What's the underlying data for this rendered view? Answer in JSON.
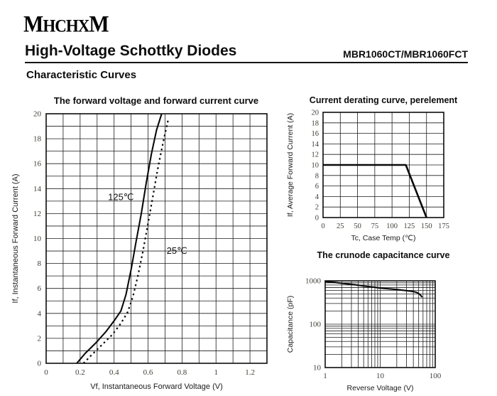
{
  "header": {
    "logo": "MHCHXM",
    "title": "High-Voltage Schottky Diodes",
    "part_number": "MBR1060CT/MBR1060FCT",
    "section_title": "Characteristic Curves"
  },
  "colors": {
    "ink": "#0d0d0d",
    "grid": "#1c1c1c",
    "curve": "#0a0a0a",
    "tick_text": "#3f3e36",
    "background": "#ffffff"
  },
  "chart_data": [
    {
      "id": "forward",
      "type": "line",
      "title": "The forward voltage and forward current curve",
      "xlabel": "Vf, Instantaneous Forward Voltage (V)",
      "ylabel": "If, Instantaneous Forward Current (A)",
      "xscale": "linear",
      "yscale": "linear",
      "xlim": [
        0,
        1.3
      ],
      "ylim": [
        0,
        20
      ],
      "xgrid_step": 0.1,
      "ygrid_step": 1,
      "xticks": {
        "values": [
          0,
          0.2,
          0.4,
          0.6,
          0.8,
          1.0,
          1.2
        ],
        "labels": [
          "0",
          "0.2",
          "0.4",
          "0.6",
          "0.8",
          "1",
          "1.2"
        ]
      },
      "yticks": {
        "values": [
          0,
          2,
          4,
          6,
          8,
          10,
          12,
          14,
          16,
          18,
          20
        ],
        "labels": [
          "0",
          "2",
          "4",
          "6",
          "8",
          "10",
          "12",
          "14",
          "16",
          "18",
          "20"
        ]
      },
      "grid": true,
      "legend_position": "inline-labels",
      "series": [
        {
          "name": "125℃",
          "style": "solid",
          "width": 2.1,
          "points": [
            [
              0.18,
              0
            ],
            [
              0.23,
              0.8
            ],
            [
              0.29,
              1.6
            ],
            [
              0.35,
              2.5
            ],
            [
              0.4,
              3.4
            ],
            [
              0.44,
              4.2
            ],
            [
              0.47,
              5.5
            ],
            [
              0.5,
              7.5
            ],
            [
              0.53,
              9.8
            ],
            [
              0.56,
              12.0
            ],
            [
              0.59,
              14.5
            ],
            [
              0.62,
              16.8
            ],
            [
              0.65,
              18.7
            ],
            [
              0.68,
              20.0
            ]
          ],
          "label_at": [
            0.44,
            13.3
          ],
          "label_font": 13
        },
        {
          "name": "25℃",
          "style": "dotted",
          "width": 2.2,
          "points": [
            [
              0.22,
              0
            ],
            [
              0.27,
              0.7
            ],
            [
              0.33,
              1.5
            ],
            [
              0.39,
              2.3
            ],
            [
              0.44,
              3.2
            ],
            [
              0.48,
              4.1
            ],
            [
              0.51,
              5.3
            ],
            [
              0.54,
              7.0
            ],
            [
              0.57,
              9.0
            ],
            [
              0.6,
              11.2
            ],
            [
              0.63,
              13.5
            ],
            [
              0.66,
              15.8
            ],
            [
              0.69,
              17.8
            ],
            [
              0.72,
              19.6
            ]
          ],
          "label_at": [
            0.77,
            9.0
          ],
          "label_font": 13
        }
      ]
    },
    {
      "id": "derating",
      "type": "line",
      "title": "Current derating curve, perelement",
      "xlabel": "Tc, Case Temp (℃)",
      "ylabel": "If, Average Forward Current (A)",
      "xscale": "linear",
      "yscale": "linear",
      "xlim": [
        0,
        175
      ],
      "ylim": [
        0,
        20
      ],
      "xgrid_step": 25,
      "ygrid_step": 2,
      "xticks": {
        "values": [
          0,
          25,
          50,
          75,
          100,
          125,
          150,
          175
        ],
        "labels": [
          "0",
          "25",
          "50",
          "75",
          "100",
          "125",
          "150",
          "175"
        ]
      },
      "yticks": {
        "values": [
          0,
          2,
          4,
          6,
          8,
          10,
          12,
          14,
          16,
          18,
          20
        ],
        "labels": [
          "0",
          "2",
          "4",
          "6",
          "8",
          "10",
          "12",
          "14",
          "16",
          "18",
          "20"
        ]
      },
      "grid": true,
      "series": [
        {
          "name": "derating",
          "style": "solid",
          "width": 2.6,
          "points": [
            [
              0,
              10
            ],
            [
              120,
              10
            ],
            [
              150,
              0
            ]
          ]
        }
      ]
    },
    {
      "id": "capacitance",
      "type": "line",
      "title": "The crunode capacitance curve",
      "xlabel": "Reverse Voltage (V)",
      "ylabel": "Capacitance (pF)",
      "xscale": "log",
      "yscale": "log",
      "xlim": [
        1,
        100
      ],
      "ylim": [
        10,
        1000
      ],
      "xticks": {
        "values": [
          1,
          10,
          100
        ],
        "labels": [
          "1",
          "10",
          "100"
        ]
      },
      "yticks": {
        "values": [
          10,
          100,
          1000
        ],
        "labels": [
          "10",
          "100",
          "1000"
        ]
      },
      "grid": true,
      "series": [
        {
          "name": "capacitance",
          "style": "solid",
          "width": 2.1,
          "points": [
            [
              1,
              960
            ],
            [
              1.5,
              920
            ],
            [
              2,
              880
            ],
            [
              3,
              830
            ],
            [
              4,
              790
            ],
            [
              5,
              760
            ],
            [
              6,
              740
            ],
            [
              8,
              710
            ],
            [
              10,
              680
            ],
            [
              13,
              660
            ],
            [
              16,
              645
            ],
            [
              20,
              630
            ],
            [
              25,
              610
            ],
            [
              30,
              595
            ],
            [
              35,
              580
            ],
            [
              40,
              565
            ],
            [
              45,
              545
            ],
            [
              48,
              525
            ],
            [
              52,
              490
            ],
            [
              55,
              455
            ],
            [
              58,
              420
            ]
          ]
        }
      ]
    }
  ]
}
